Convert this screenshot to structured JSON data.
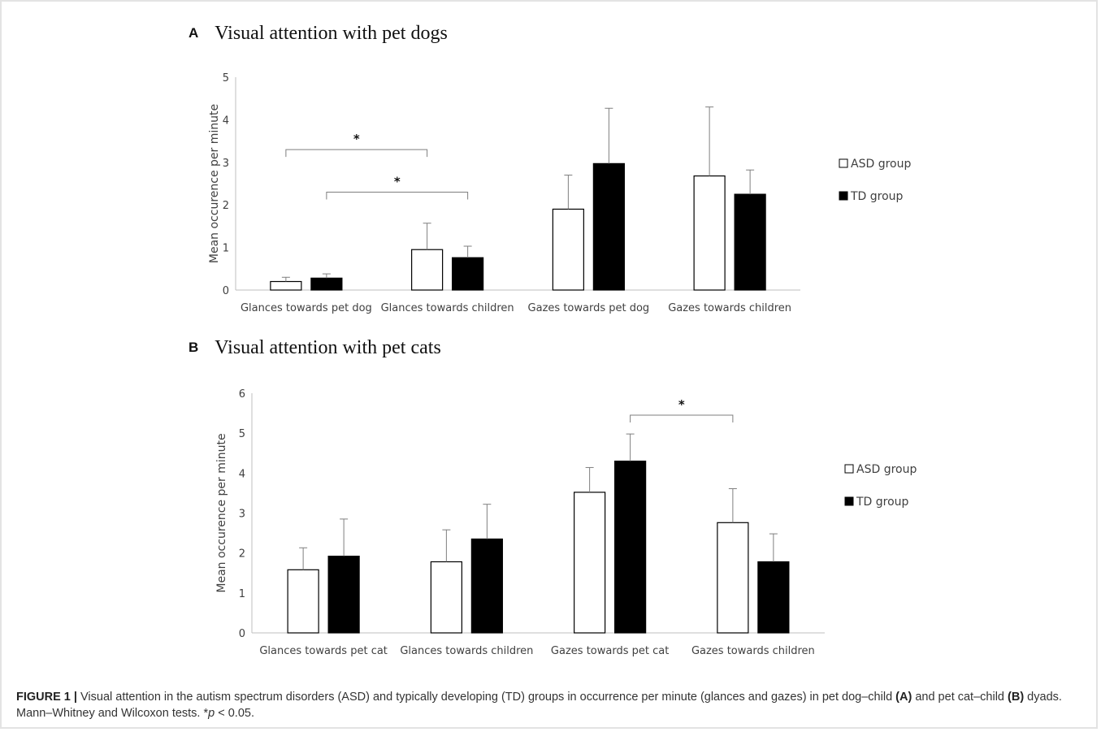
{
  "panelA": {
    "letter": "A",
    "title": "Visual attention with pet dogs"
  },
  "panelB": {
    "letter": "B",
    "title": "Visual attention with pet cats"
  },
  "caption": {
    "figure_label": "FIGURE 1 |",
    "text_1": " Visual attention in the autism spectrum disorders (ASD) and typically developing (TD) groups in occurrence per minute (glances and gazes) in pet dog–child ",
    "bold_a": "(A)",
    "text_2": " and pet cat–child ",
    "bold_b": "(B)",
    "text_3": " dyads. Mann–Whitney and Wilcoxon tests. *",
    "p_italic": "p",
    "text_4": " < 0.05."
  },
  "colors": {
    "asd_fill": "#ffffff",
    "td_fill": "#000000",
    "axis": "#bfbfbf",
    "bar_edge": "#000000"
  },
  "chart_data": [
    {
      "type": "bar",
      "title": "Visual attention with pet dogs",
      "ylabel": "Mean occurence per minute",
      "xlabel": "",
      "ylim": [
        0,
        5
      ],
      "yticks": [
        "0",
        "1",
        "2",
        "3",
        "4",
        "5"
      ],
      "grid": false,
      "legend_position": "right",
      "categories": [
        "Glances towards pet dog",
        "Glances towards children",
        "Gazes towards pet dog",
        "Gazes towards children"
      ],
      "series": [
        {
          "name": "ASD group",
          "values": [
            0.2,
            0.95,
            1.9,
            2.68
          ],
          "error": [
            0.1,
            0.62,
            0.8,
            1.62
          ]
        },
        {
          "name": "TD group",
          "values": [
            0.28,
            0.76,
            2.97,
            2.25
          ],
          "error": [
            0.1,
            0.27,
            1.3,
            0.57
          ]
        }
      ],
      "annotations": [
        {
          "label": "*",
          "from_category": 0,
          "from_series": 0,
          "to_category": 1,
          "to_series": 0,
          "level": 3.3
        },
        {
          "label": "*",
          "from_category": 0,
          "from_series": 1,
          "to_category": 1,
          "to_series": 1,
          "level": 2.3
        }
      ]
    },
    {
      "type": "bar",
      "title": "Visual attention with pet cats",
      "ylabel": "Mean occurence per minute",
      "xlabel": "",
      "ylim": [
        0,
        6
      ],
      "yticks": [
        "0",
        "1",
        "2",
        "3",
        "4",
        "5",
        "6"
      ],
      "grid": false,
      "legend_position": "right",
      "categories": [
        "Glances towards pet cat",
        "Glances towards children",
        "Gazes towards pet cat",
        "Gazes towards children"
      ],
      "series": [
        {
          "name": "ASD group",
          "values": [
            1.58,
            1.78,
            3.52,
            2.76
          ],
          "error": [
            0.55,
            0.8,
            0.62,
            0.85
          ]
        },
        {
          "name": "TD group",
          "values": [
            1.92,
            2.35,
            4.3,
            1.78
          ],
          "error": [
            0.93,
            0.87,
            0.68,
            0.7
          ]
        }
      ],
      "annotations": [
        {
          "label": "*",
          "from_category": 2,
          "from_series": 1,
          "to_category": 3,
          "to_series": 0,
          "level": 5.45
        }
      ]
    }
  ]
}
